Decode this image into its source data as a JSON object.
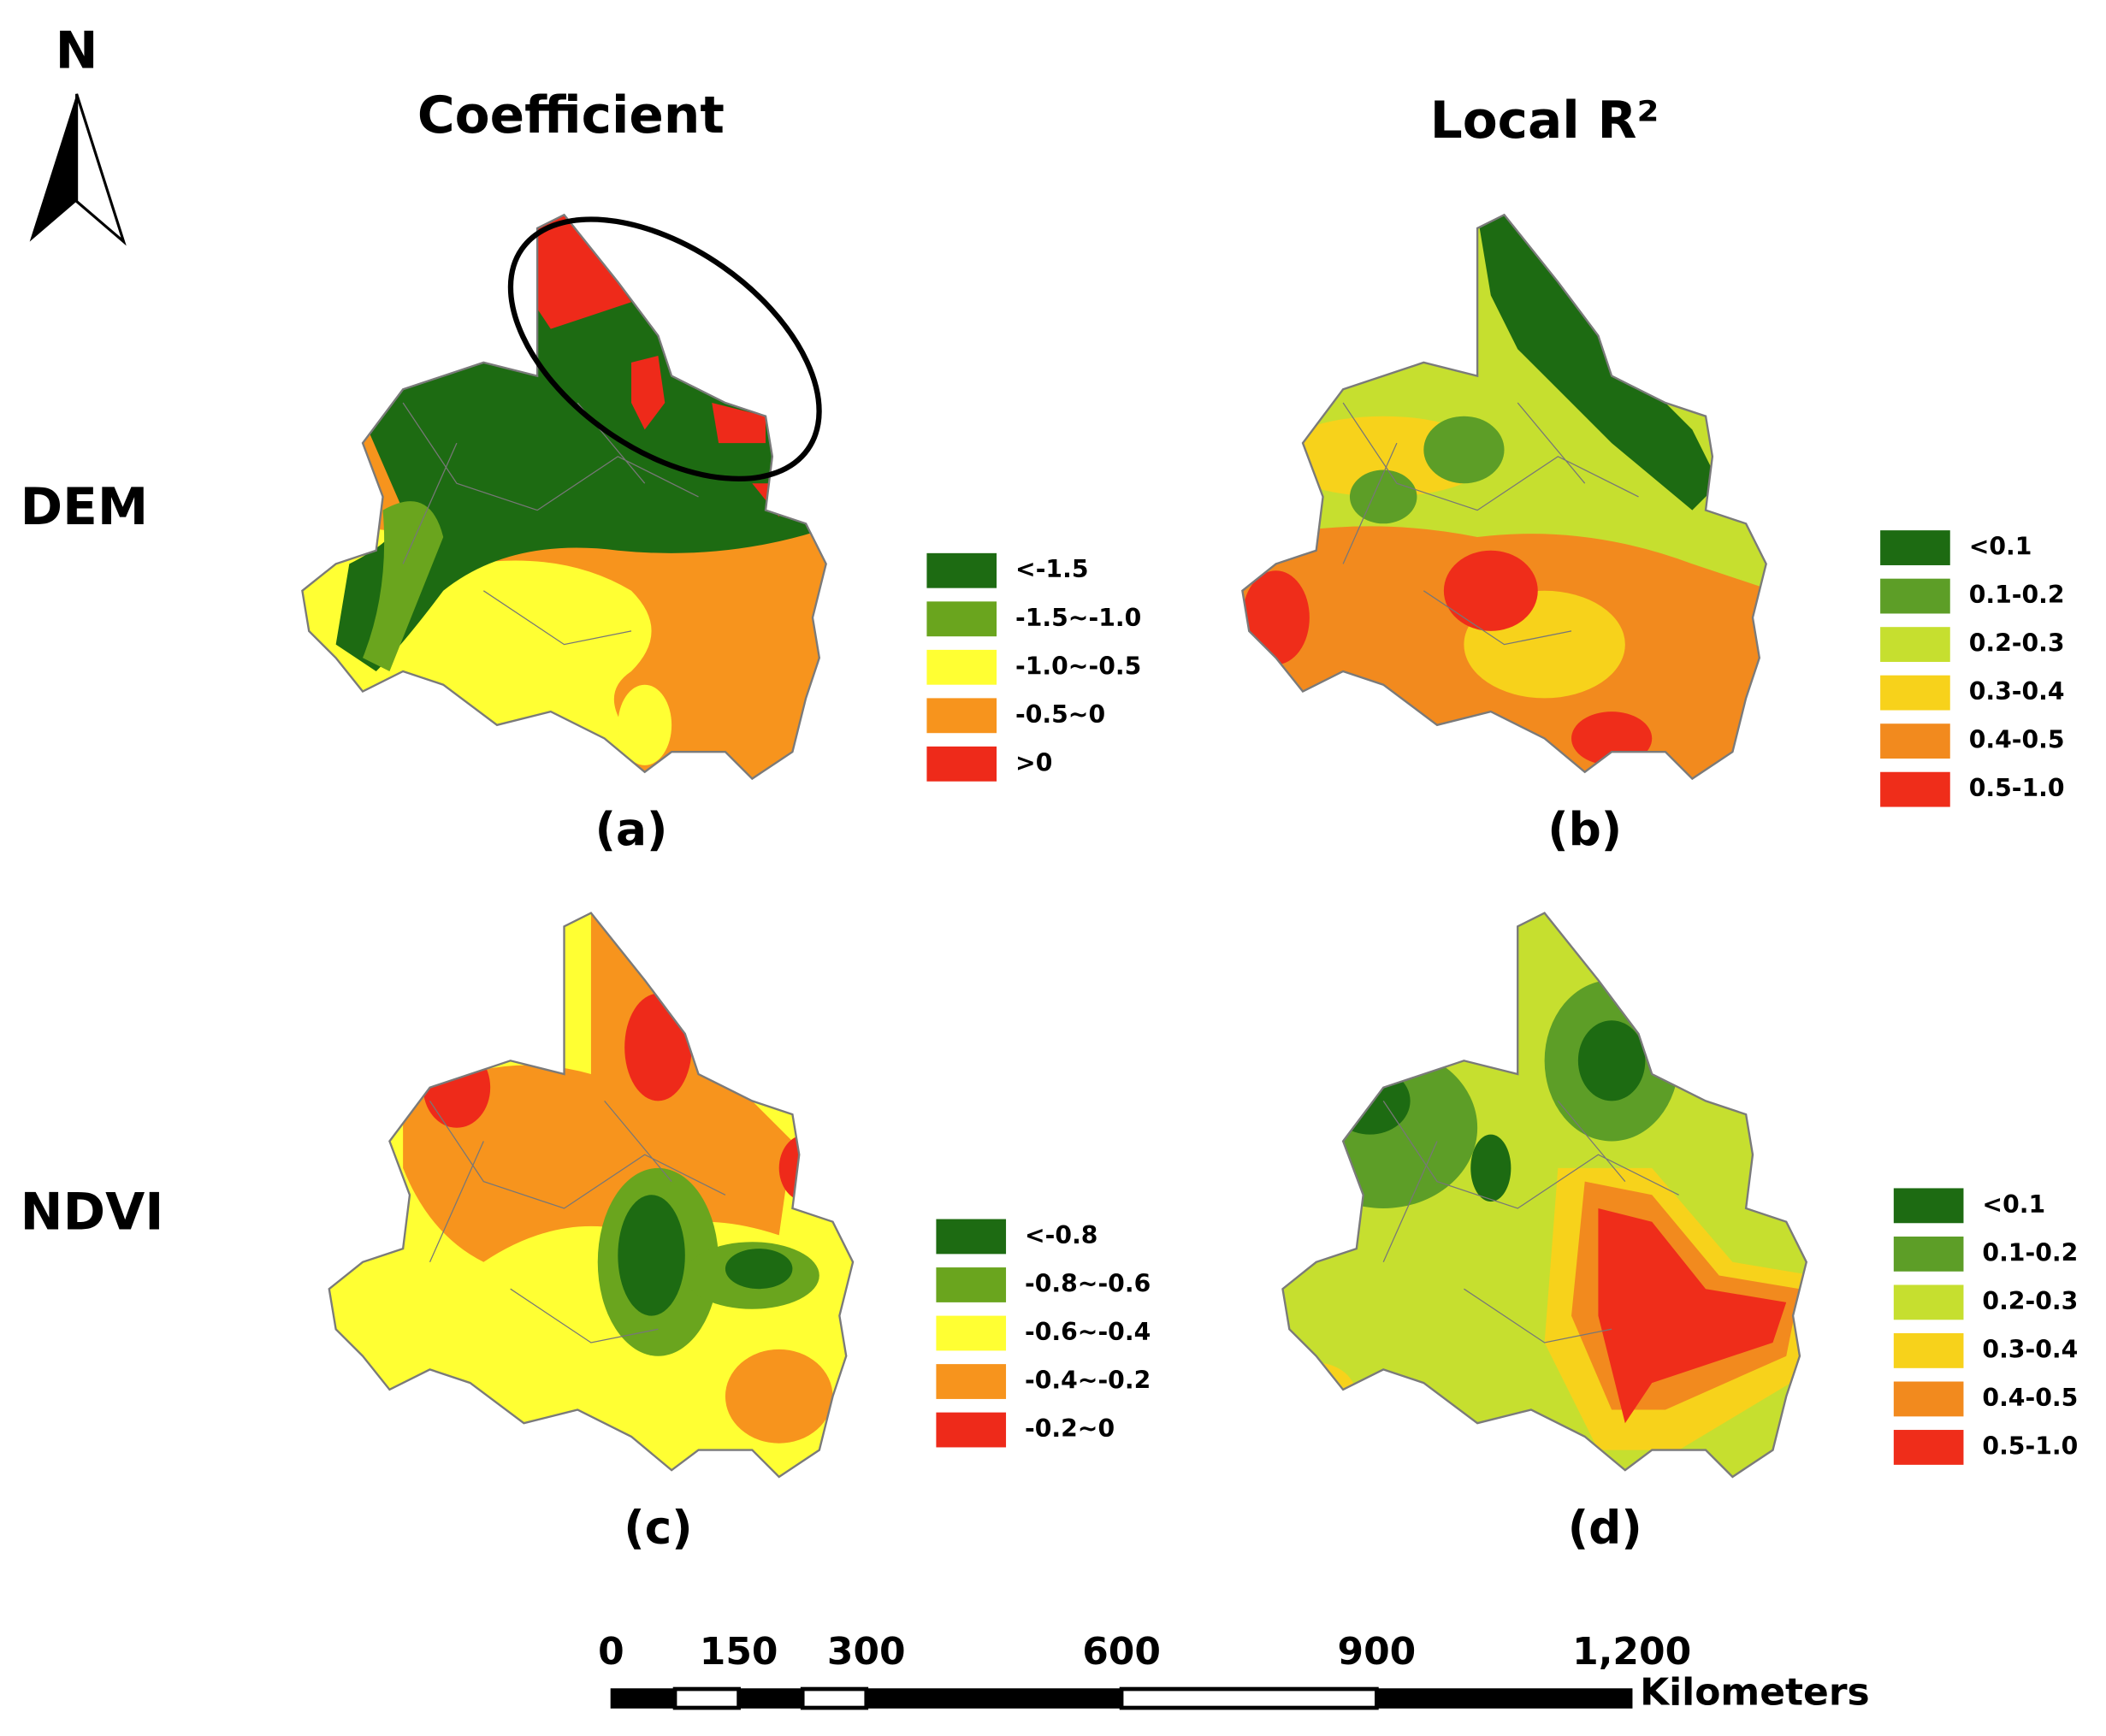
{
  "north_label": "N",
  "columns": [
    "Coefficient",
    "Local R²"
  ],
  "rows": [
    "DEM",
    "NDVI"
  ],
  "panels": [
    {
      "label": "(a)",
      "legend": [
        {
          "label": "<-1.5",
          "color": "#1d6b12"
        },
        {
          "label": "-1.5~-1.0",
          "color": "#6aa51e"
        },
        {
          "label": "-1.0~-0.5",
          "color": "#ffff33"
        },
        {
          "label": "-0.5~0",
          "color": "#f7941d"
        },
        {
          "label": ">0",
          "color": "#ee2a1a"
        }
      ]
    },
    {
      "label": "(b)",
      "legend": [
        {
          "label": "<0.1",
          "color": "#1d6b12"
        },
        {
          "label": "0.1-0.2",
          "color": "#5d9e27"
        },
        {
          "label": "0.2-0.3",
          "color": "#c6df2f"
        },
        {
          "label": "0.3-0.4",
          "color": "#f7d21b"
        },
        {
          "label": "0.4-0.5",
          "color": "#f28a1e"
        },
        {
          "label": "0.5-1.0",
          "color": "#ef2d1a"
        }
      ]
    },
    {
      "label": "(c)",
      "legend": [
        {
          "label": "<-0.8",
          "color": "#1d6b12"
        },
        {
          "label": "-0.8~-0.6",
          "color": "#6aa51e"
        },
        {
          "label": "-0.6~-0.4",
          "color": "#ffff33"
        },
        {
          "label": "-0.4~-0.2",
          "color": "#f7941d"
        },
        {
          "label": "-0.2~0",
          "color": "#ee2a1a"
        }
      ]
    },
    {
      "label": "(d)",
      "legend": [
        {
          "label": "<0.1",
          "color": "#1d6b12"
        },
        {
          "label": "0.1-0.2",
          "color": "#5d9e27"
        },
        {
          "label": "0.2-0.3",
          "color": "#c6df2f"
        },
        {
          "label": "0.3-0.4",
          "color": "#f7d21b"
        },
        {
          "label": "0.4-0.5",
          "color": "#f28a1e"
        },
        {
          "label": "0.5-1.0",
          "color": "#ef2d1a"
        }
      ]
    }
  ],
  "scale_bar": {
    "ticks": [
      0,
      150,
      300,
      600,
      900,
      {
        "value": 1200,
        "label": "1,200"
      }
    ],
    "unit": "Kilometers"
  }
}
